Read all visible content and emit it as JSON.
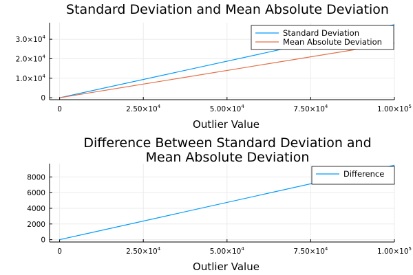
{
  "chart_data": [
    {
      "type": "line",
      "title_lines": [
        "Standard Deviation and Mean Absolute Deviation"
      ],
      "xlabel": "Outlier Value",
      "ylabel": "",
      "xlim": [
        -3000,
        100000
      ],
      "ylim": [
        -1000,
        38500
      ],
      "x_ticks": [
        {
          "value": 0,
          "mantissa": "0",
          "exp": ""
        },
        {
          "value": 25000,
          "mantissa": "2.50×10",
          "exp": "4"
        },
        {
          "value": 50000,
          "mantissa": "5.00×10",
          "exp": "4"
        },
        {
          "value": 75000,
          "mantissa": "7.50×10",
          "exp": "4"
        },
        {
          "value": 100000,
          "mantissa": "1.00×10",
          "exp": "5"
        }
      ],
      "y_ticks": [
        {
          "value": 0,
          "mantissa": "0",
          "exp": ""
        },
        {
          "value": 10000,
          "mantissa": "1.0×10",
          "exp": "4"
        },
        {
          "value": 20000,
          "mantissa": "2.0×10",
          "exp": "4"
        },
        {
          "value": 30000,
          "mantissa": "3.0×10",
          "exp": "4"
        }
      ],
      "grid": true,
      "legend_position": "top-right",
      "series": [
        {
          "name": "Standard Deviation",
          "color": "#009af9",
          "x": [
            0,
            100000
          ],
          "y": [
            0,
            37500
          ]
        },
        {
          "name": "Mean Absolute Deviation",
          "color": "#e26f46",
          "x": [
            0,
            100000
          ],
          "y": [
            0,
            28000
          ]
        }
      ]
    },
    {
      "type": "line",
      "title_lines": [
        "Difference Between Standard Deviation and",
        "Mean Absolute Deviation"
      ],
      "xlabel": "Outlier Value",
      "ylabel": "",
      "xlim": [
        -3000,
        100000
      ],
      "ylim": [
        -300,
        9700
      ],
      "x_ticks": [
        {
          "value": 0,
          "mantissa": "0",
          "exp": ""
        },
        {
          "value": 25000,
          "mantissa": "2.50×10",
          "exp": "4"
        },
        {
          "value": 50000,
          "mantissa": "5.00×10",
          "exp": "4"
        },
        {
          "value": 75000,
          "mantissa": "7.50×10",
          "exp": "4"
        },
        {
          "value": 100000,
          "mantissa": "1.00×10",
          "exp": "5"
        }
      ],
      "y_ticks": [
        {
          "value": 0,
          "mantissa": "0",
          "exp": ""
        },
        {
          "value": 2000,
          "mantissa": "2000",
          "exp": ""
        },
        {
          "value": 4000,
          "mantissa": "4000",
          "exp": ""
        },
        {
          "value": 6000,
          "mantissa": "6000",
          "exp": ""
        },
        {
          "value": 8000,
          "mantissa": "8000",
          "exp": ""
        }
      ],
      "grid": true,
      "legend_position": "top-right",
      "series": [
        {
          "name": "Difference",
          "color": "#009af9",
          "x": [
            0,
            100000
          ],
          "y": [
            0,
            9500
          ]
        }
      ]
    }
  ]
}
